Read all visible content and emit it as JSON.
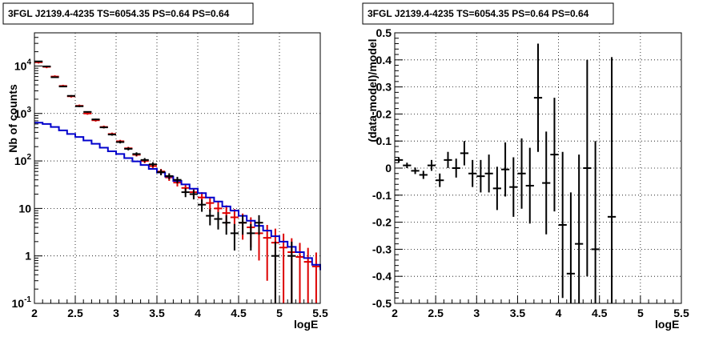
{
  "chart_data": [
    {
      "type": "line",
      "title": "3FGL J2139.4-4235 TS=6054.35 PS=0.64 PS=0.64",
      "xlabel": "logE",
      "ylabel": "Nb of counts",
      "xlim": [
        2,
        5.5
      ],
      "ylim": [
        0.1,
        50000
      ],
      "yscale": "log",
      "grid": true,
      "x_ticks": [
        "2",
        "2.5",
        "3",
        "3.5",
        "4",
        "4.5",
        "5",
        "5.5"
      ],
      "y_ticks": [
        {
          "value": 0.1,
          "label": "10",
          "exp": "-1"
        },
        {
          "value": 1,
          "label": "1",
          "exp": ""
        },
        {
          "value": 10,
          "label": "10",
          "exp": ""
        },
        {
          "value": 100,
          "label": "10",
          "exp": "2"
        },
        {
          "value": 1000,
          "label": "10",
          "exp": "3"
        },
        {
          "value": 10000,
          "label": "10",
          "exp": "4"
        }
      ],
      "bin_edges": [
        2.0,
        2.1,
        2.2,
        2.3,
        2.4,
        2.5,
        2.6,
        2.7,
        2.8,
        2.9,
        3.0,
        3.1,
        3.2,
        3.3,
        3.4,
        3.5,
        3.6,
        3.7,
        3.8,
        3.9,
        4.0,
        4.1,
        4.2,
        4.3,
        4.4,
        4.5,
        4.6,
        4.7,
        4.8,
        4.9,
        5.0,
        5.1,
        5.2,
        5.3,
        5.4,
        5.5
      ],
      "series": [
        {
          "name": "model",
          "color": "#0000cc",
          "style": "step",
          "values": [
            640,
            600,
            520,
            440,
            370,
            320,
            270,
            230,
            190,
            160,
            140,
            115,
            98,
            82,
            68,
            57,
            47,
            38,
            32,
            26,
            21,
            17,
            14,
            11,
            9,
            7,
            5.5,
            4.3,
            3.4,
            2.6,
            2.0,
            1.55,
            1.2,
            0.9,
            0.65,
            0.5
          ]
        },
        {
          "name": "data",
          "color": "#000000",
          "style": "errorbars",
          "points": [
            {
              "x": 2.05,
              "y": 12500,
              "e": 110
            },
            {
              "x": 2.15,
              "y": 9800,
              "e": 100
            },
            {
              "x": 2.25,
              "y": 5800,
              "e": 76
            },
            {
              "x": 2.35,
              "y": 3700,
              "e": 61
            },
            {
              "x": 2.45,
              "y": 2350,
              "e": 48
            },
            {
              "x": 2.55,
              "y": 1420,
              "e": 38
            },
            {
              "x": 2.65,
              "y": 1080,
              "e": 33
            },
            {
              "x": 2.75,
              "y": 750,
              "e": 27
            },
            {
              "x": 2.85,
              "y": 510,
              "e": 23
            },
            {
              "x": 2.95,
              "y": 360,
              "e": 19
            },
            {
              "x": 3.05,
              "y": 250,
              "e": 16
            },
            {
              "x": 3.15,
              "y": 180,
              "e": 13
            },
            {
              "x": 3.25,
              "y": 140,
              "e": 12
            },
            {
              "x": 3.35,
              "y": 105,
              "e": 10
            },
            {
              "x": 3.45,
              "y": 85,
              "e": 9
            },
            {
              "x": 3.55,
              "y": 58,
              "e": 8
            },
            {
              "x": 3.65,
              "y": 48,
              "e": 7
            },
            {
              "x": 3.75,
              "y": 40,
              "e": 6.3
            },
            {
              "x": 3.85,
              "y": 22,
              "e": 4.7
            },
            {
              "x": 3.95,
              "y": 20,
              "e": 4.5
            },
            {
              "x": 4.05,
              "y": 12,
              "e": 3.5
            },
            {
              "x": 4.15,
              "y": 7,
              "e": 2.6
            },
            {
              "x": 4.25,
              "y": 6,
              "e": 2.4
            },
            {
              "x": 4.35,
              "y": 5,
              "e": 2.2
            },
            {
              "x": 4.45,
              "y": 3,
              "e": 1.7
            },
            {
              "x": 4.55,
              "y": 5,
              "e": 2.2
            },
            {
              "x": 4.65,
              "y": 3,
              "e": 1.7
            },
            {
              "x": 4.75,
              "y": 5,
              "e": 2.2
            },
            {
              "x": 4.95,
              "y": 1,
              "e": 1
            },
            {
              "x": 5.15,
              "y": 1,
              "e": 1
            }
          ]
        },
        {
          "name": "model-red",
          "color": "#dd0000",
          "style": "errorbars",
          "points": [
            {
              "x": 2.05,
              "y": 12000,
              "e": 700
            },
            {
              "x": 2.15,
              "y": 9600,
              "e": 600
            },
            {
              "x": 2.25,
              "y": 6000,
              "e": 350
            },
            {
              "x": 2.35,
              "y": 3800,
              "e": 220
            },
            {
              "x": 2.45,
              "y": 2300,
              "e": 140
            },
            {
              "x": 2.55,
              "y": 1450,
              "e": 90
            },
            {
              "x": 2.65,
              "y": 1000,
              "e": 60
            },
            {
              "x": 2.75,
              "y": 720,
              "e": 45
            },
            {
              "x": 2.85,
              "y": 520,
              "e": 35
            },
            {
              "x": 2.95,
              "y": 370,
              "e": 25
            },
            {
              "x": 3.05,
              "y": 260,
              "e": 18
            },
            {
              "x": 3.15,
              "y": 185,
              "e": 13
            },
            {
              "x": 3.25,
              "y": 135,
              "e": 11
            },
            {
              "x": 3.35,
              "y": 100,
              "e": 10
            },
            {
              "x": 3.45,
              "y": 78,
              "e": 9
            },
            {
              "x": 3.55,
              "y": 60,
              "e": 8
            },
            {
              "x": 3.65,
              "y": 45,
              "e": 7
            },
            {
              "x": 3.75,
              "y": 35,
              "e": 6
            },
            {
              "x": 3.85,
              "y": 27,
              "e": 5
            },
            {
              "x": 3.95,
              "y": 22,
              "e": 4.7
            },
            {
              "x": 4.05,
              "y": 17,
              "e": 5
            },
            {
              "x": 4.15,
              "y": 13,
              "e": 4.5
            },
            {
              "x": 4.25,
              "y": 10,
              "e": 4
            },
            {
              "x": 4.35,
              "y": 8,
              "e": 3.6
            },
            {
              "x": 4.45,
              "y": 6.5,
              "e": 3.2
            },
            {
              "x": 4.55,
              "y": 5,
              "e": 2.8
            },
            {
              "x": 4.65,
              "y": 4,
              "e": 2.5
            },
            {
              "x": 4.75,
              "y": 3,
              "e": 2.2
            },
            {
              "x": 4.85,
              "y": 2.4,
              "e": 2.1
            },
            {
              "x": 4.95,
              "y": 1.9,
              "e": 1.85
            },
            {
              "x": 5.05,
              "y": 1.5,
              "e": 1.45
            },
            {
              "x": 5.15,
              "y": 1.2,
              "e": 1.15
            },
            {
              "x": 5.25,
              "y": 0.95,
              "e": 0.93
            },
            {
              "x": 5.35,
              "y": 0.75,
              "e": 0.73
            },
            {
              "x": 5.45,
              "y": 0.6,
              "e": 0.58
            }
          ]
        }
      ]
    },
    {
      "type": "scatter",
      "title": "3FGL J2139.4-4235 TS=6054.35 PS=0.64 PS=0.64",
      "xlabel": "logE",
      "ylabel": "(data-model)/model",
      "xlim": [
        2,
        5.5
      ],
      "ylim": [
        -0.5,
        0.5
      ],
      "grid": true,
      "x_ticks": [
        "2",
        "2.5",
        "3",
        "3.5",
        "4",
        "4.5",
        "5",
        "5.5"
      ],
      "y_ticks": [
        "-0.5",
        "-0.4",
        "-0.3",
        "-0.2",
        "-0.1",
        "0",
        "0.1",
        "0.2",
        "0.3",
        "0.4",
        "0.5"
      ],
      "series": [
        {
          "name": "residuals",
          "color": "#000000",
          "style": "errorbars",
          "points": [
            {
              "x": 2.05,
              "y": 0.03,
              "e": 0.01
            },
            {
              "x": 2.15,
              "y": 0.01,
              "e": 0.01
            },
            {
              "x": 2.25,
              "y": -0.01,
              "e": 0.012
            },
            {
              "x": 2.35,
              "y": -0.025,
              "e": 0.015
            },
            {
              "x": 2.45,
              "y": 0.01,
              "e": 0.02
            },
            {
              "x": 2.55,
              "y": -0.045,
              "e": 0.025
            },
            {
              "x": 2.65,
              "y": 0.03,
              "e": 0.03
            },
            {
              "x": 2.75,
              "y": 0.0,
              "e": 0.035
            },
            {
              "x": 2.85,
              "y": 0.055,
              "e": 0.045
            },
            {
              "x": 2.95,
              "y": -0.02,
              "e": 0.05
            },
            {
              "x": 3.05,
              "y": -0.03,
              "e": 0.06
            },
            {
              "x": 3.15,
              "y": -0.02,
              "e": 0.07
            },
            {
              "x": 3.25,
              "y": -0.075,
              "e": 0.08
            },
            {
              "x": 3.35,
              "y": -0.005,
              "e": 0.1
            },
            {
              "x": 3.45,
              "y": -0.07,
              "e": 0.11
            },
            {
              "x": 3.55,
              "y": -0.02,
              "e": 0.13
            },
            {
              "x": 3.65,
              "y": -0.065,
              "e": 0.14
            },
            {
              "x": 3.75,
              "y": 0.26,
              "e": 0.2
            },
            {
              "x": 3.85,
              "y": -0.055,
              "e": 0.19
            },
            {
              "x": 3.95,
              "y": 0.05,
              "e": 0.21
            },
            {
              "x": 4.05,
              "y": -0.21,
              "e": 0.27
            },
            {
              "x": 4.15,
              "y": -0.39,
              "e": 0.3
            },
            {
              "x": 4.25,
              "y": -0.28,
              "e": 0.33
            },
            {
              "x": 4.35,
              "y": 0.0,
              "e": 0.4
            },
            {
              "x": 4.45,
              "y": -0.3,
              "e": 0.4
            },
            {
              "x": 4.65,
              "y": -0.18,
              "e": 0.59
            }
          ]
        }
      ]
    }
  ]
}
